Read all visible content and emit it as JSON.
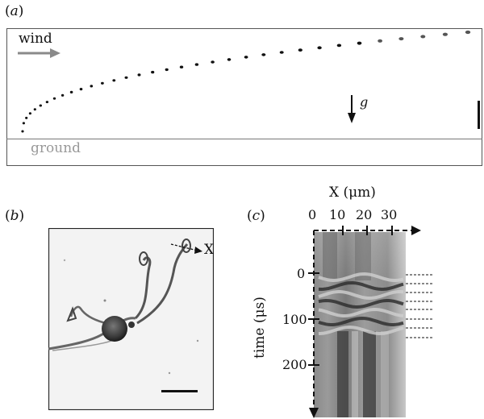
{
  "panel_a": {
    "label": "a",
    "wind_label": "wind",
    "gravity_label": "g",
    "ground_label": "ground"
  },
  "panel_b": {
    "label": "b",
    "marker_label": "X"
  },
  "panel_c": {
    "label": "c",
    "x_axis_label": "X (μm)",
    "x_ticks": [
      "0",
      "10",
      "20",
      "30"
    ],
    "y_axis_label": "time (μs)",
    "y_ticks": [
      "0",
      "100",
      "200"
    ]
  },
  "colors": {
    "wind_arrow": "#8a8a8a",
    "ground_text": "#999999",
    "frame": "#555555"
  }
}
